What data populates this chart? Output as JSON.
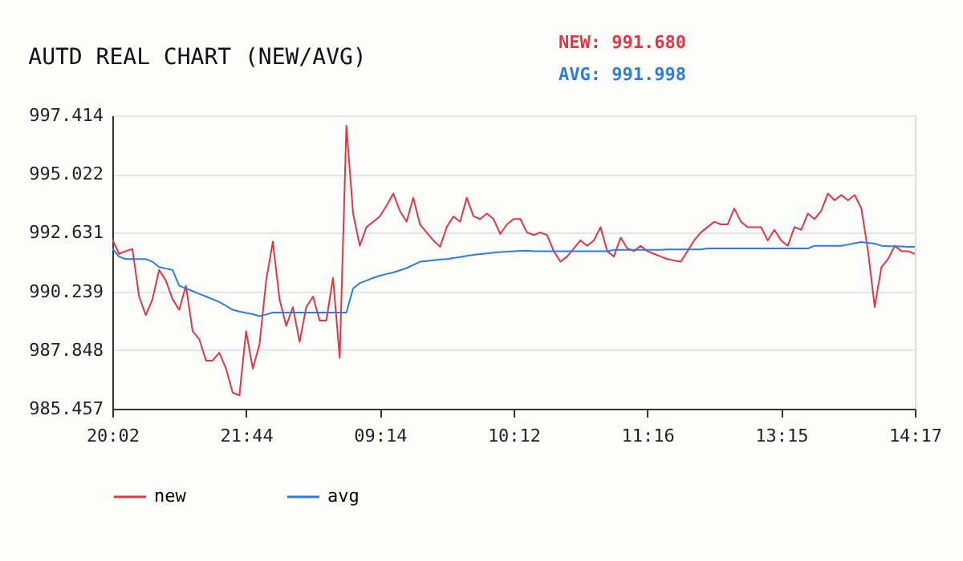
{
  "chart_data": {
    "type": "line",
    "title": "AUTD REAL CHART (NEW/AVG)",
    "annotations": [
      "NEW: 991.680",
      "AVG: 991.998"
    ],
    "categories": [
      "20:02",
      null,
      null,
      null,
      null,
      null,
      null,
      null,
      null,
      null,
      null,
      null,
      null,
      null,
      null,
      null,
      null,
      null,
      null,
      null,
      "21:44",
      null,
      null,
      null,
      null,
      null,
      null,
      null,
      null,
      null,
      null,
      null,
      null,
      null,
      null,
      null,
      null,
      null,
      null,
      null,
      "09:14",
      null,
      null,
      null,
      null,
      null,
      null,
      null,
      null,
      null,
      null,
      null,
      null,
      null,
      null,
      null,
      null,
      null,
      null,
      null,
      "10:12",
      null,
      null,
      null,
      null,
      null,
      null,
      null,
      null,
      null,
      null,
      null,
      null,
      null,
      null,
      null,
      null,
      null,
      null,
      null,
      "11:16",
      null,
      null,
      null,
      null,
      null,
      null,
      null,
      null,
      null,
      null,
      null,
      null,
      null,
      null,
      null,
      null,
      null,
      null,
      null,
      "13:15",
      null,
      null,
      null,
      null,
      null,
      null,
      null,
      null,
      null,
      null,
      null,
      null,
      null,
      null,
      null,
      null,
      null,
      null,
      null,
      "14:17"
    ],
    "ylim": [
      985.457,
      997.414
    ],
    "yticks": [
      985.457,
      987.848,
      990.239,
      992.631,
      995.022,
      997.414
    ],
    "grid": "y",
    "legend": "bottom",
    "marker": "none",
    "line_style": "solid",
    "series": [
      {
        "name": "new",
        "color": "#e8343f",
        "values": [
          992.36,
          991.77,
          991.88,
          991.97,
          990.03,
          989.27,
          989.92,
          991.12,
          990.68,
          989.92,
          989.49,
          990.47,
          988.62,
          988.29,
          987.42,
          987.42,
          987.74,
          987.09,
          986.11,
          986.0,
          988.62,
          987.09,
          988.07,
          990.68,
          992.27,
          989.92,
          988.83,
          989.6,
          988.18,
          989.6,
          990.03,
          989.05,
          989.05,
          990.79,
          987.53,
          997.0,
          993.41,
          992.1,
          992.86,
          993.08,
          993.3,
          993.73,
          994.23,
          993.52,
          993.08,
          994.06,
          992.97,
          992.64,
          992.32,
          992.06,
          992.86,
          993.3,
          993.08,
          994.06,
          993.3,
          993.19,
          993.41,
          993.19,
          992.58,
          992.97,
          993.19,
          993.19,
          992.64,
          992.54,
          992.64,
          992.54,
          991.88,
          991.45,
          991.66,
          991.99,
          992.32,
          992.1,
          992.32,
          992.86,
          991.88,
          991.66,
          992.43,
          991.99,
          991.88,
          992.1,
          991.88,
          991.77,
          991.66,
          991.56,
          991.5,
          991.45,
          991.88,
          992.32,
          992.64,
          992.86,
          993.08,
          992.97,
          992.97,
          993.62,
          993.08,
          992.86,
          992.86,
          992.86,
          992.32,
          992.75,
          992.32,
          992.1,
          992.86,
          992.75,
          993.41,
          993.19,
          993.52,
          994.23,
          993.95,
          994.17,
          993.95,
          994.17,
          993.62,
          991.88,
          989.6,
          991.23,
          991.56,
          992.1,
          991.88,
          991.88,
          991.77
        ]
      },
      {
        "name": "avg",
        "color": "#2a7de1",
        "values": [
          991.99,
          991.66,
          991.56,
          991.56,
          991.56,
          991.56,
          991.45,
          991.23,
          991.17,
          991.12,
          990.47,
          990.36,
          990.25,
          990.14,
          990.03,
          989.92,
          989.81,
          989.65,
          989.49,
          989.42,
          989.36,
          989.31,
          989.23,
          989.3,
          989.38,
          989.38,
          989.38,
          989.38,
          989.38,
          989.38,
          989.38,
          989.38,
          989.38,
          989.38,
          989.38,
          989.38,
          990.36,
          990.58,
          990.68,
          990.79,
          990.88,
          990.95,
          991.01,
          991.1,
          991.19,
          991.32,
          991.45,
          991.48,
          991.51,
          991.54,
          991.56,
          991.6,
          991.64,
          991.69,
          991.73,
          991.76,
          991.79,
          991.82,
          991.84,
          991.86,
          991.88,
          991.89,
          991.9,
          991.88,
          991.88,
          991.88,
          991.88,
          991.88,
          991.88,
          991.88,
          991.88,
          991.88,
          991.88,
          991.88,
          991.88,
          991.93,
          991.93,
          991.93,
          991.93,
          991.93,
          991.93,
          991.93,
          991.93,
          991.95,
          991.95,
          991.95,
          991.95,
          991.95,
          991.95,
          991.99,
          991.99,
          991.99,
          991.99,
          991.99,
          991.99,
          991.99,
          991.99,
          991.99,
          991.99,
          991.99,
          991.99,
          991.99,
          991.99,
          991.99,
          991.99,
          992.1,
          992.1,
          992.1,
          992.1,
          992.1,
          992.15,
          992.2,
          992.25,
          992.22,
          992.19,
          992.1,
          992.08,
          992.08,
          992.07,
          992.06,
          992.06
        ]
      }
    ]
  }
}
